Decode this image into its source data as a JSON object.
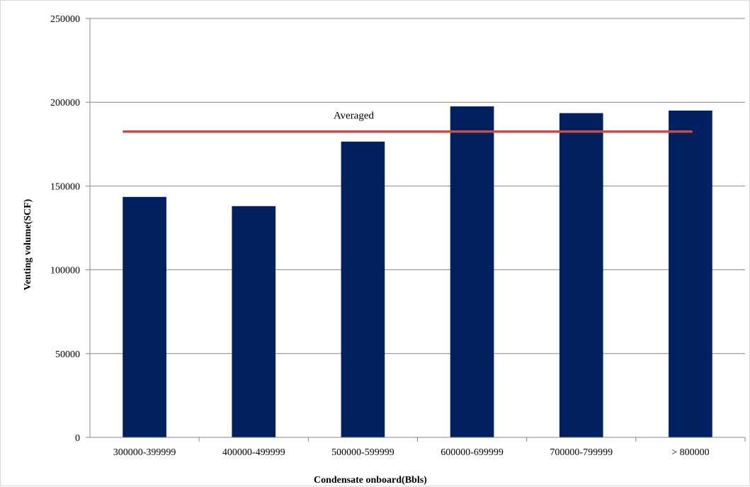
{
  "chart_data": {
    "type": "bar",
    "title": "",
    "xlabel": "Condensate onboard(Bbls)",
    "ylabel": "Venting volume(SCF)",
    "categories": [
      "300000-399999",
      "400000-499999",
      "500000-599999",
      "600000-699999",
      "700000-799999",
      "> 800000"
    ],
    "series": [
      {
        "values": [
          143500,
          138000,
          176500,
          197500,
          193500,
          195000
        ],
        "color": "#002060"
      }
    ],
    "yticks": [
      "0",
      "50000",
      "100000",
      "150000",
      "200000",
      "250000"
    ],
    "ylim": [
      0,
      250000
    ],
    "reference_line": {
      "label": "Averaged",
      "value": 182500,
      "color": "#c0504d"
    },
    "grid": true,
    "legend": "none"
  }
}
